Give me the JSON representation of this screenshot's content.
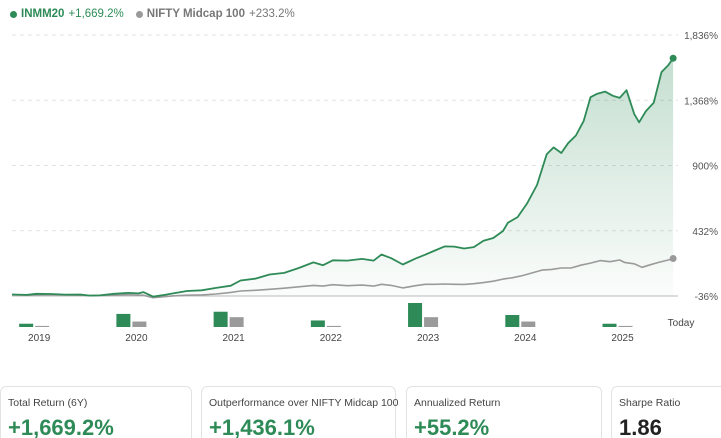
{
  "legend": {
    "primary_name": "INMM20",
    "primary_value": "+1,669.2%",
    "secondary_name": "NIFTY Midcap 100",
    "secondary_value": "+233.2%"
  },
  "colors": {
    "primary": "#2e8b57",
    "secondary": "#9a9a9a",
    "grid": "#e2e2e2"
  },
  "chart_data": {
    "type": "line",
    "ylim": [
      -36,
      1836
    ],
    "y_ticks": [
      "1,836%",
      "1,368%",
      "900%",
      "432%",
      "-36%"
    ],
    "y_tick_values": [
      1836,
      1368,
      900,
      432,
      -36
    ],
    "x_labels": [
      "2019",
      "2020",
      "2021",
      "2022",
      "2023",
      "2024",
      "2025",
      "Today"
    ],
    "x_range": [
      2018.7,
      2025.55
    ],
    "series": [
      {
        "name": "INMM20",
        "final_value": "+1,669.2%",
        "points": [
          [
            2018.7,
            -25
          ],
          [
            2018.85,
            -28
          ],
          [
            2018.95,
            -20
          ],
          [
            2019.1,
            -22
          ],
          [
            2019.25,
            -26
          ],
          [
            2019.4,
            -25
          ],
          [
            2019.5,
            -33
          ],
          [
            2019.6,
            -32
          ],
          [
            2019.75,
            -20
          ],
          [
            2019.9,
            -14
          ],
          [
            2020.0,
            -17
          ],
          [
            2020.05,
            -8
          ],
          [
            2020.15,
            -40
          ],
          [
            2020.25,
            -30
          ],
          [
            2020.35,
            -18
          ],
          [
            2020.5,
            0
          ],
          [
            2020.65,
            5
          ],
          [
            2020.8,
            22
          ],
          [
            2020.95,
            38
          ],
          [
            2021.05,
            75
          ],
          [
            2021.2,
            88
          ],
          [
            2021.35,
            118
          ],
          [
            2021.5,
            130
          ],
          [
            2021.65,
            165
          ],
          [
            2021.8,
            205
          ],
          [
            2021.9,
            185
          ],
          [
            2022.0,
            220
          ],
          [
            2022.15,
            218
          ],
          [
            2022.3,
            230
          ],
          [
            2022.42,
            218
          ],
          [
            2022.5,
            262
          ],
          [
            2022.6,
            235
          ],
          [
            2022.72,
            190
          ],
          [
            2022.85,
            232
          ],
          [
            2022.95,
            260
          ],
          [
            2023.05,
            290
          ],
          [
            2023.15,
            320
          ],
          [
            2023.25,
            318
          ],
          [
            2023.35,
            305
          ],
          [
            2023.45,
            315
          ],
          [
            2023.55,
            360
          ],
          [
            2023.65,
            380
          ],
          [
            2023.75,
            430
          ],
          [
            2023.8,
            490
          ],
          [
            2023.9,
            530
          ],
          [
            2024.0,
            630
          ],
          [
            2024.1,
            760
          ],
          [
            2024.2,
            980
          ],
          [
            2024.27,
            1030
          ],
          [
            2024.35,
            990
          ],
          [
            2024.42,
            1060
          ],
          [
            2024.5,
            1115
          ],
          [
            2024.58,
            1220
          ],
          [
            2024.65,
            1390
          ],
          [
            2024.72,
            1415
          ],
          [
            2024.8,
            1430
          ],
          [
            2024.88,
            1400
          ],
          [
            2024.95,
            1385
          ],
          [
            2025.02,
            1440
          ],
          [
            2025.1,
            1270
          ],
          [
            2025.15,
            1210
          ],
          [
            2025.22,
            1290
          ],
          [
            2025.3,
            1350
          ],
          [
            2025.38,
            1570
          ],
          [
            2025.45,
            1620
          ],
          [
            2025.5,
            1669
          ]
        ]
      },
      {
        "name": "NIFTY Midcap 100",
        "final_value": "+233.2%",
        "points": [
          [
            2018.7,
            -26
          ],
          [
            2018.85,
            -30
          ],
          [
            2018.95,
            -28
          ],
          [
            2019.1,
            -27
          ],
          [
            2019.25,
            -29
          ],
          [
            2019.4,
            -30
          ],
          [
            2019.5,
            -33
          ],
          [
            2019.6,
            -32
          ],
          [
            2019.75,
            -30
          ],
          [
            2019.9,
            -27
          ],
          [
            2020.0,
            -30
          ],
          [
            2020.05,
            -30
          ],
          [
            2020.15,
            -48
          ],
          [
            2020.25,
            -42
          ],
          [
            2020.35,
            -35
          ],
          [
            2020.5,
            -30
          ],
          [
            2020.65,
            -28
          ],
          [
            2020.8,
            -22
          ],
          [
            2020.95,
            -10
          ],
          [
            2021.05,
            0
          ],
          [
            2021.2,
            5
          ],
          [
            2021.35,
            12
          ],
          [
            2021.5,
            20
          ],
          [
            2021.65,
            30
          ],
          [
            2021.8,
            40
          ],
          [
            2021.9,
            35
          ],
          [
            2022.0,
            45
          ],
          [
            2022.15,
            38
          ],
          [
            2022.3,
            42
          ],
          [
            2022.42,
            35
          ],
          [
            2022.5,
            48
          ],
          [
            2022.6,
            40
          ],
          [
            2022.72,
            22
          ],
          [
            2022.85,
            38
          ],
          [
            2022.95,
            48
          ],
          [
            2023.05,
            48
          ],
          [
            2023.15,
            50
          ],
          [
            2023.25,
            48
          ],
          [
            2023.35,
            47
          ],
          [
            2023.45,
            52
          ],
          [
            2023.55,
            60
          ],
          [
            2023.65,
            70
          ],
          [
            2023.75,
            85
          ],
          [
            2023.85,
            95
          ],
          [
            2023.95,
            110
          ],
          [
            2024.05,
            130
          ],
          [
            2024.15,
            150
          ],
          [
            2024.25,
            155
          ],
          [
            2024.35,
            165
          ],
          [
            2024.45,
            165
          ],
          [
            2024.55,
            185
          ],
          [
            2024.65,
            200
          ],
          [
            2024.75,
            218
          ],
          [
            2024.85,
            210
          ],
          [
            2024.95,
            222
          ],
          [
            2025.0,
            205
          ],
          [
            2025.1,
            195
          ],
          [
            2025.18,
            170
          ],
          [
            2025.25,
            185
          ],
          [
            2025.35,
            205
          ],
          [
            2025.45,
            222
          ],
          [
            2025.5,
            233
          ]
        ]
      }
    ],
    "annual_bars": {
      "years": [
        "2019",
        "2020",
        "2021",
        "2022",
        "2023",
        "2024",
        "2025"
      ],
      "inmm20": [
        3,
        12,
        14,
        6,
        22,
        11,
        3
      ],
      "nifty": [
        1,
        5,
        9,
        1,
        9,
        5,
        1
      ]
    }
  },
  "cards": [
    {
      "label": "Total Return (6Y)",
      "value": "+1,669.2%"
    },
    {
      "label": "Outperformance over NIFTY Midcap 100",
      "value": "+1,436.1%"
    },
    {
      "label": "Annualized Return",
      "value": "+55.2%"
    },
    {
      "label": "Sharpe Ratio",
      "value": "1.86"
    }
  ]
}
